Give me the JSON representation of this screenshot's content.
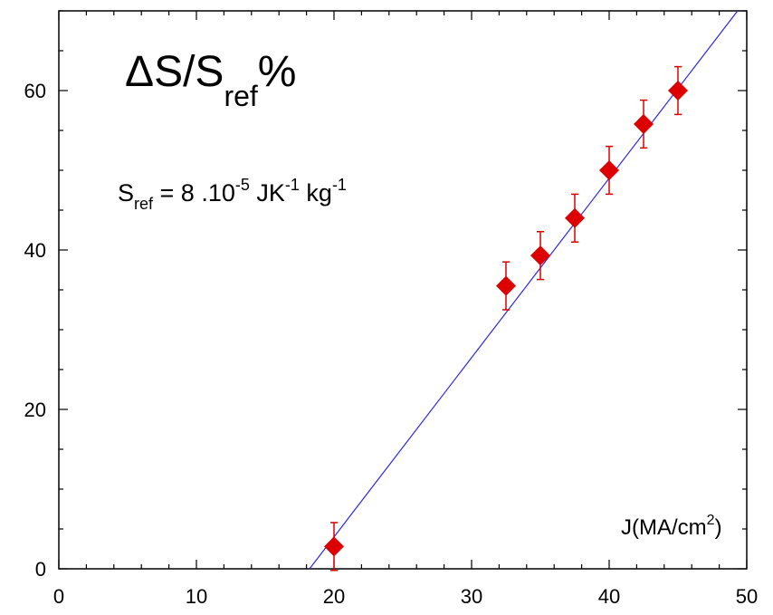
{
  "chart_data": {
    "type": "scatter",
    "title": {
      "main": "ΔS/S",
      "sub": "ref",
      "suffix": "%"
    },
    "subtitle": {
      "s": "S",
      "s_sub": "ref",
      "eq": " = 8 .10",
      "exp1": "-5",
      "unit1": " JK",
      "exp2": "-1",
      "unit2": " kg",
      "exp3": "-1"
    },
    "xlabel": {
      "text": "J(MA/cm",
      "sup": "2",
      "close": ")"
    },
    "ylabel": "",
    "xlim": [
      0,
      50
    ],
    "ylim": [
      0,
      70
    ],
    "x_ticks": [
      0,
      10,
      20,
      30,
      40,
      50
    ],
    "y_ticks": [
      0,
      20,
      40,
      60
    ],
    "x_minor_step": 2,
    "y_minor_step": 5,
    "grid": false,
    "series": [
      {
        "marker": "diamond",
        "color": "#dd0000",
        "points": [
          {
            "x": 20.0,
            "y": 2.8,
            "err": 3.0
          },
          {
            "x": 32.5,
            "y": 35.5,
            "err": 3.0
          },
          {
            "x": 35.0,
            "y": 39.3,
            "err": 3.0
          },
          {
            "x": 37.5,
            "y": 44.0,
            "err": 3.0
          },
          {
            "x": 40.0,
            "y": 50.0,
            "err": 3.0
          },
          {
            "x": 42.5,
            "y": 55.8,
            "err": 3.0
          },
          {
            "x": 45.0,
            "y": 60.0,
            "err": 3.0
          }
        ]
      }
    ],
    "fit_line": {
      "color": "#2a2ae6",
      "slope": 2.25,
      "intercept": -41.0
    }
  }
}
